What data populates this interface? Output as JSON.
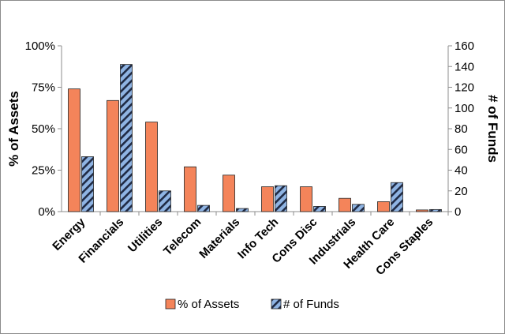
{
  "chart_data": {
    "type": "bar",
    "categories": [
      "Energy",
      "Financials",
      "Utilities",
      "Telecom",
      "Materials",
      "Info Tech",
      "Cons Disc",
      "Industrials",
      "Health Care",
      "Cons Staples"
    ],
    "series": [
      {
        "name": "% of Assets",
        "axis": "left",
        "color": "#f4845a",
        "values": [
          74,
          67,
          54,
          27,
          22,
          15,
          15,
          8,
          6,
          1
        ]
      },
      {
        "name": "# of Funds",
        "axis": "right",
        "color": "#8fb4e3",
        "pattern": "diagonal-stripes",
        "values": [
          53,
          142,
          20,
          6,
          3,
          25,
          5,
          7,
          28,
          2
        ]
      }
    ],
    "y_left": {
      "label": "% of Assets",
      "ylim": [
        0,
        100
      ],
      "ticks": [
        0,
        25,
        50,
        75,
        100
      ],
      "tick_labels": [
        "0%",
        "25%",
        "50%",
        "75%",
        "100%"
      ]
    },
    "y_right": {
      "label": "# of Funds",
      "ylim": [
        0,
        160
      ],
      "ticks": [
        0,
        20,
        40,
        60,
        80,
        100,
        120,
        140,
        160
      ],
      "tick_labels": [
        "0",
        "20",
        "40",
        "60",
        "80",
        "100",
        "120",
        "140",
        "160"
      ]
    },
    "grid": false,
    "legend_position": "bottom",
    "legend": [
      {
        "label": "% of Assets"
      },
      {
        "label": "# of Funds"
      }
    ]
  }
}
